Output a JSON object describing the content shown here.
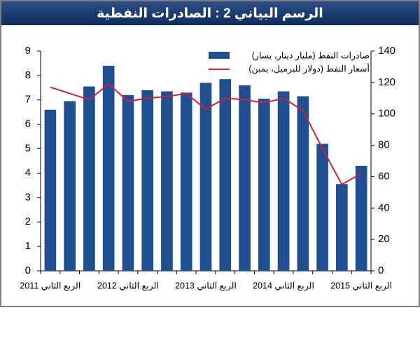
{
  "chart_data": {
    "type": "bar_line",
    "title": "الرسم البياني 2 : الصادرات النفطية",
    "categories": [
      "الربع الثاني 2011",
      null,
      null,
      null,
      "الربع الثاني 2012",
      null,
      null,
      null,
      "الربع الثاني 2013",
      null,
      null,
      null,
      "الربع الثاني 2014",
      null,
      null,
      null,
      "الربع الثاني 2015"
    ],
    "series": [
      {
        "name": "صادرات النفط (مليار دينار، يسار)",
        "color": "#1d4f91",
        "type": "bar",
        "values": [
          6.6,
          6.95,
          7.55,
          8.4,
          7.2,
          7.4,
          7.35,
          7.3,
          7.7,
          7.85,
          7.6,
          7.05,
          7.35,
          7.15,
          5.2,
          3.55,
          4.3
        ]
      },
      {
        "name": "أسعار النفط (دولار للبرميل، يمين)",
        "color": "#d0203a",
        "type": "line",
        "axis": "y2",
        "values": [
          117,
          113,
          109,
          119,
          108,
          110,
          111,
          113,
          103,
          110,
          109,
          107,
          110,
          102,
          78,
          55,
          62
        ]
      }
    ],
    "ylim": [
      0,
      9
    ],
    "yticks": [
      0,
      1,
      2,
      3,
      4,
      5,
      6,
      7,
      8,
      9
    ],
    "y2lim": [
      0,
      140
    ],
    "y2ticks": [
      0,
      20,
      40,
      60,
      80,
      100,
      120,
      140
    ],
    "legend": "top-right"
  }
}
